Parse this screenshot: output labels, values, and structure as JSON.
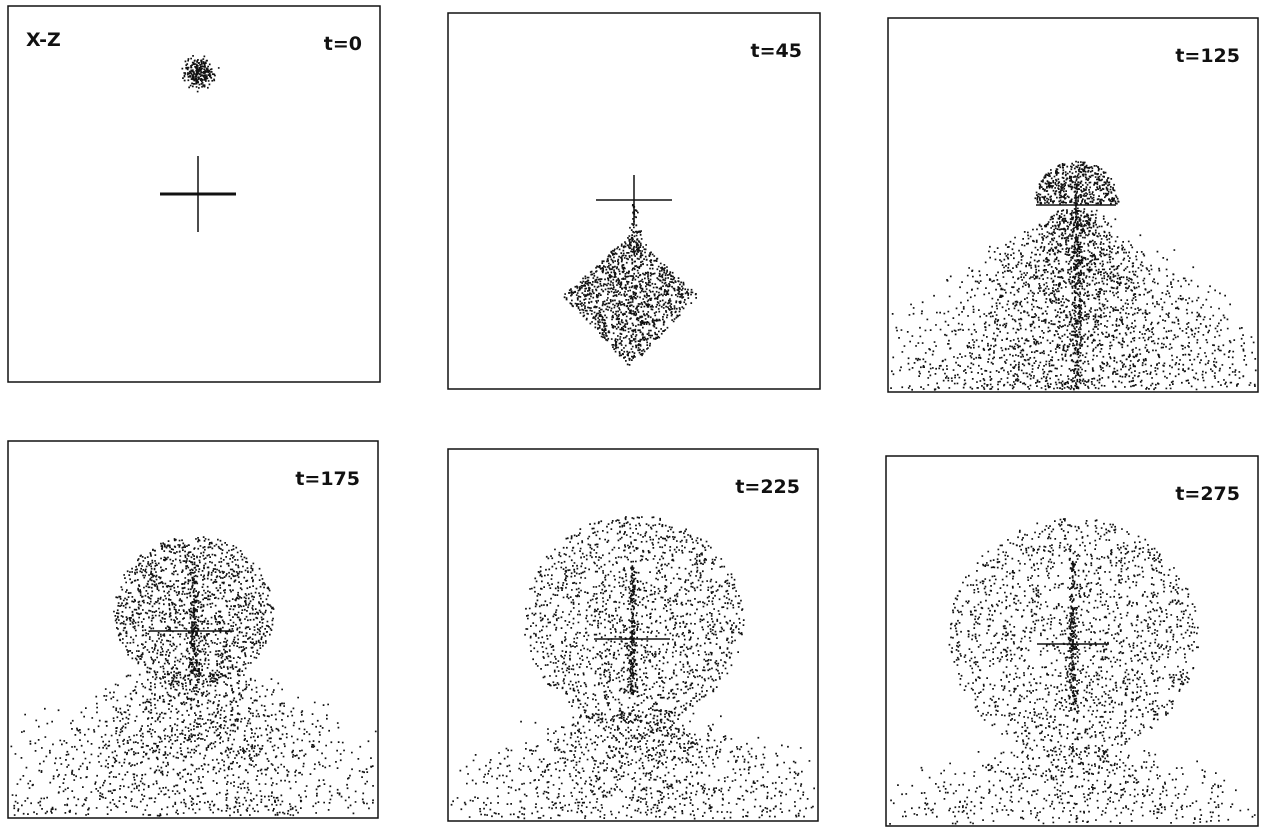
{
  "figure": {
    "axes_label": "X-Z",
    "panels": [
      {
        "label": "t=0"
      },
      {
        "label": "t=45"
      },
      {
        "label": "t=125"
      },
      {
        "label": "t=175"
      },
      {
        "label": "t=225"
      },
      {
        "label": "t=275"
      }
    ]
  }
}
